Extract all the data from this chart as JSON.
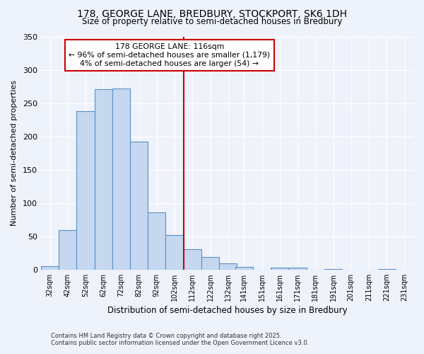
{
  "title": "178, GEORGE LANE, BREDBURY, STOCKPORT, SK6 1DH",
  "subtitle": "Size of property relative to semi-detached houses in Bredbury",
  "xlabel": "Distribution of semi-detached houses by size in Bredbury",
  "ylabel": "Number of semi-detached properties",
  "bin_labels": [
    "32sqm",
    "42sqm",
    "52sqm",
    "62sqm",
    "72sqm",
    "82sqm",
    "92sqm",
    "102sqm",
    "112sqm",
    "122sqm",
    "132sqm",
    "141sqm",
    "151sqm",
    "161sqm",
    "171sqm",
    "181sqm",
    "191sqm",
    "201sqm",
    "211sqm",
    "221sqm",
    "231sqm"
  ],
  "bin_edges": [
    32,
    42,
    52,
    62,
    72,
    82,
    92,
    102,
    112,
    122,
    132,
    141,
    151,
    161,
    171,
    181,
    191,
    201,
    211,
    221,
    231
  ],
  "bar_heights": [
    5,
    59,
    238,
    271,
    272,
    192,
    86,
    52,
    31,
    19,
    9,
    4,
    0,
    3,
    3,
    0,
    1,
    0,
    0,
    1
  ],
  "bar_color": "#c5d8f0",
  "bar_edge_color": "#5b8fc9",
  "vline_x": 112,
  "vline_color": "#cc0000",
  "annotation_title": "178 GEORGE LANE: 116sqm",
  "annotation_line1": "← 96% of semi-detached houses are smaller (1,179)",
  "annotation_line2": "4% of semi-detached houses are larger (54) →",
  "annotation_box_color": "#ffffff",
  "annotation_border_color": "#cc0000",
  "ylim": [
    0,
    350
  ],
  "yticks": [
    0,
    50,
    100,
    150,
    200,
    250,
    300,
    350
  ],
  "background_color": "#eef2fa",
  "grid_color": "#ffffff",
  "footer1": "Contains HM Land Registry data © Crown copyright and database right 2025.",
  "footer2": "Contains public sector information licensed under the Open Government Licence v3.0."
}
